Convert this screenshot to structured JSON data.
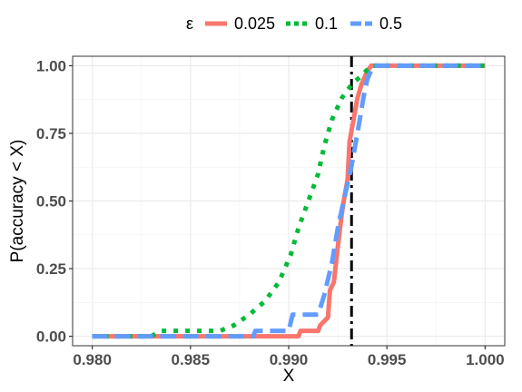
{
  "chart_data": {
    "type": "line",
    "title": "",
    "xlabel": "X",
    "ylabel": "P(accuracy < X)",
    "xlim": [
      0.979,
      1.001
    ],
    "ylim": [
      -0.035,
      1.035
    ],
    "x_ticks": [
      0.98,
      0.985,
      0.99,
      0.995,
      1.0
    ],
    "x_tick_labels": [
      "0.980",
      "0.985",
      "0.990",
      "0.995",
      "1.000"
    ],
    "y_ticks": [
      0.0,
      0.25,
      0.5,
      0.75,
      1.0
    ],
    "y_tick_labels": [
      "0.00",
      "0.25",
      "0.50",
      "0.75",
      "1.00"
    ],
    "grid": true,
    "legend": {
      "position": "top",
      "title": "ε",
      "labels": [
        "0.025",
        "0.1",
        "0.5"
      ]
    },
    "reference_line": {
      "x": 0.9932,
      "style": "dot-dash",
      "color": "#000000"
    },
    "series": [
      {
        "name": "0.025",
        "color": "#F8766D",
        "dash": "solid",
        "points": [
          [
            0.98,
            0.0
          ],
          [
            0.9905,
            0.0
          ],
          [
            0.9906,
            0.02
          ],
          [
            0.9915,
            0.02
          ],
          [
            0.9916,
            0.04
          ],
          [
            0.992,
            0.07
          ],
          [
            0.9921,
            0.17
          ],
          [
            0.9923,
            0.2
          ],
          [
            0.9925,
            0.33
          ],
          [
            0.9927,
            0.45
          ],
          [
            0.9928,
            0.5
          ],
          [
            0.993,
            0.58
          ],
          [
            0.9931,
            0.72
          ],
          [
            0.9933,
            0.8
          ],
          [
            0.9935,
            0.88
          ],
          [
            0.9937,
            0.93
          ],
          [
            0.994,
            0.98
          ],
          [
            0.9942,
            1.0
          ],
          [
            1.0,
            1.0
          ]
        ]
      },
      {
        "name": "0.1",
        "color": "#00BA38",
        "dash": "dotted",
        "points": [
          [
            0.98,
            0.0
          ],
          [
            0.983,
            0.0
          ],
          [
            0.9835,
            0.02
          ],
          [
            0.9865,
            0.02
          ],
          [
            0.9872,
            0.04
          ],
          [
            0.988,
            0.08
          ],
          [
            0.9888,
            0.13
          ],
          [
            0.9895,
            0.2
          ],
          [
            0.9901,
            0.3
          ],
          [
            0.9905,
            0.4
          ],
          [
            0.991,
            0.5
          ],
          [
            0.9915,
            0.6
          ],
          [
            0.9918,
            0.7
          ],
          [
            0.9922,
            0.8
          ],
          [
            0.9927,
            0.88
          ],
          [
            0.9932,
            0.93
          ],
          [
            0.9935,
            0.95
          ],
          [
            0.9938,
            0.97
          ],
          [
            0.9942,
            1.0
          ],
          [
            1.0,
            1.0
          ]
        ]
      },
      {
        "name": "0.5",
        "color": "#619CFF",
        "dash": "dashed",
        "points": [
          [
            0.98,
            0.0
          ],
          [
            0.9882,
            0.0
          ],
          [
            0.9883,
            0.02
          ],
          [
            0.99,
            0.02
          ],
          [
            0.9902,
            0.08
          ],
          [
            0.9915,
            0.08
          ],
          [
            0.9918,
            0.15
          ],
          [
            0.9922,
            0.27
          ],
          [
            0.9925,
            0.4
          ],
          [
            0.9928,
            0.5
          ],
          [
            0.9932,
            0.63
          ],
          [
            0.9935,
            0.75
          ],
          [
            0.9938,
            0.88
          ],
          [
            0.994,
            0.95
          ],
          [
            0.9943,
            1.0
          ],
          [
            1.0,
            1.0
          ]
        ]
      }
    ]
  }
}
